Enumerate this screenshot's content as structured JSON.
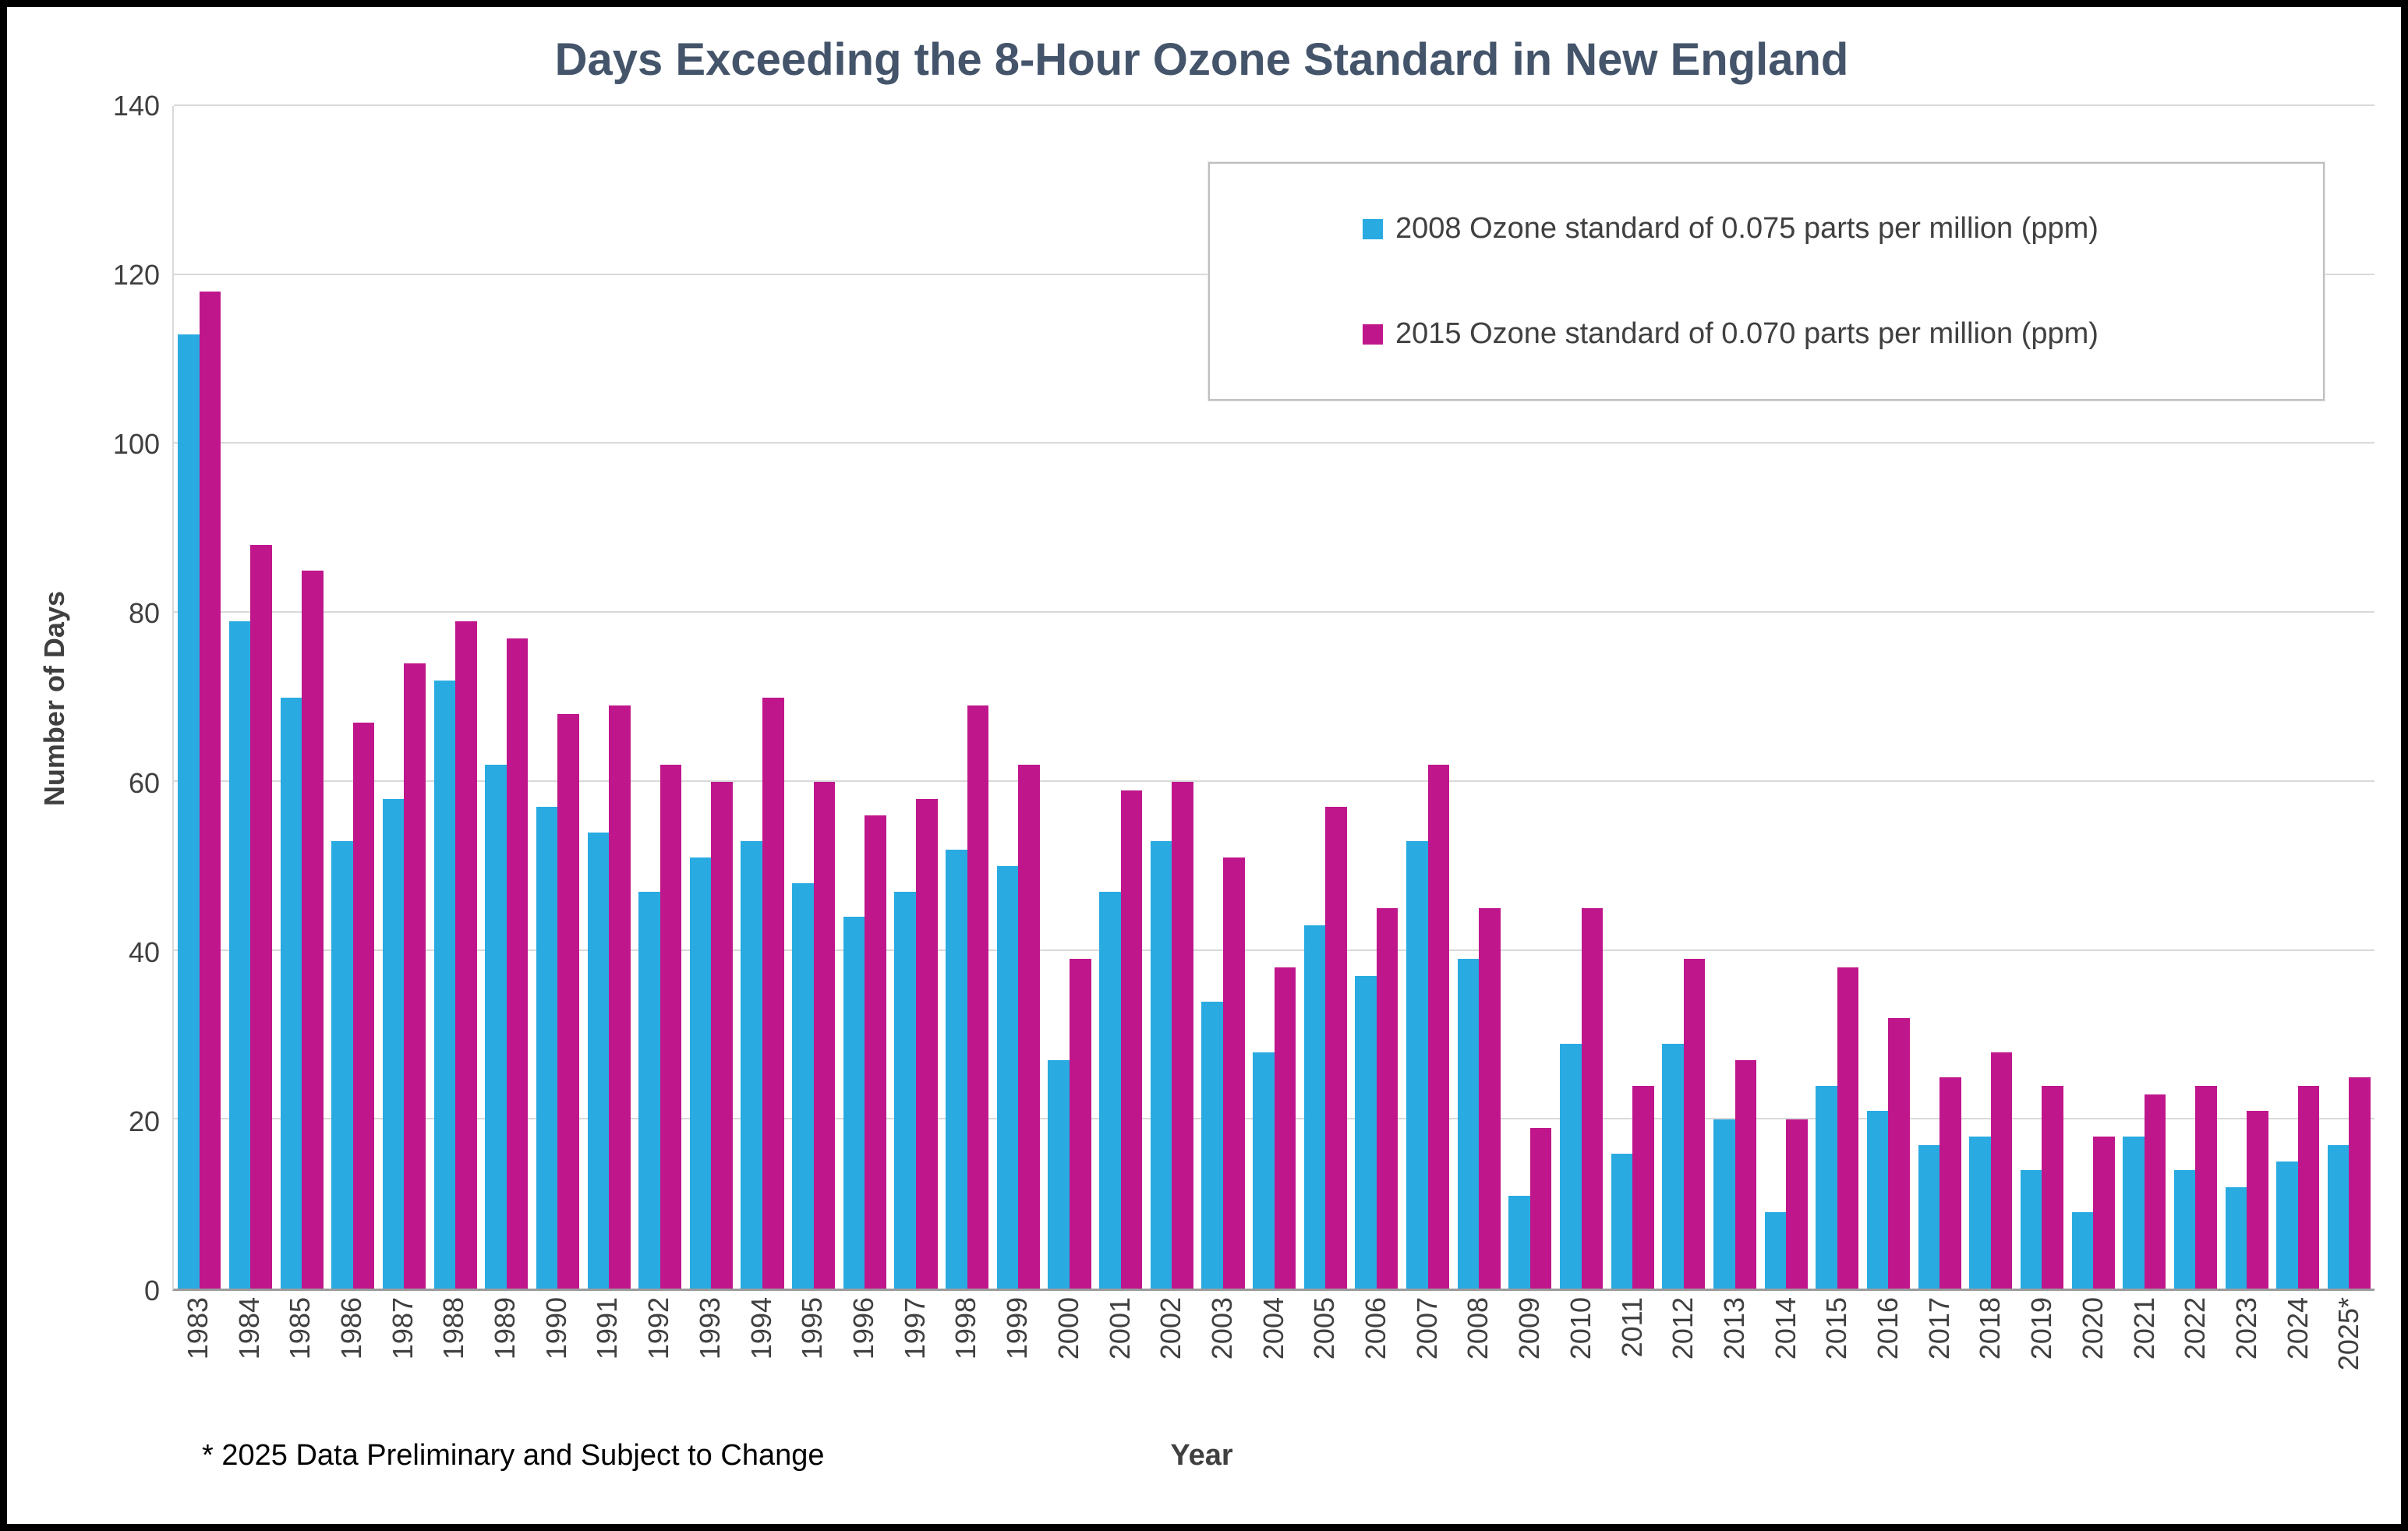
{
  "chart_data": {
    "type": "bar",
    "title": "Days Exceeding the 8-Hour Ozone Standard in New England",
    "xlabel": "Year",
    "ylabel": "Number of Days",
    "footnote": "* 2025 Data Preliminary and Subject to Change",
    "ylim": [
      0,
      140
    ],
    "ytick_step": 20,
    "grid": true,
    "legend_position": "top-right",
    "categories": [
      "1983",
      "1984",
      "1985",
      "1986",
      "1987",
      "1988",
      "1989",
      "1990",
      "1991",
      "1992",
      "1993",
      "1994",
      "1995",
      "1996",
      "1997",
      "1998",
      "1999",
      "2000",
      "2001",
      "2002",
      "2003",
      "2004",
      "2005",
      "2006",
      "2007",
      "2008",
      "2009",
      "2010",
      "2011",
      "2012",
      "2013",
      "2014",
      "2015",
      "2016",
      "2017",
      "2018",
      "2019",
      "2020",
      "2021",
      "2022",
      "2023",
      "2024",
      "2025*"
    ],
    "series": [
      {
        "name": "2008 Ozone standard of 0.075 parts per million (ppm)",
        "color": "#29ABE2",
        "values": [
          113,
          79,
          70,
          53,
          58,
          72,
          62,
          57,
          54,
          47,
          51,
          53,
          48,
          44,
          47,
          52,
          50,
          27,
          47,
          53,
          34,
          28,
          43,
          37,
          53,
          39,
          11,
          29,
          16,
          29,
          20,
          9,
          24,
          21,
          17,
          18,
          14,
          9,
          18,
          14,
          12,
          15,
          17
        ]
      },
      {
        "name": "2015 Ozone standard of 0.070 parts per million (ppm)",
        "color": "#C0168C",
        "values": [
          118,
          88,
          85,
          67,
          74,
          79,
          77,
          68,
          69,
          62,
          60,
          70,
          60,
          56,
          58,
          69,
          62,
          39,
          59,
          60,
          51,
          38,
          57,
          45,
          62,
          45,
          19,
          45,
          24,
          39,
          27,
          20,
          38,
          32,
          25,
          28,
          24,
          18,
          23,
          24,
          21,
          24,
          25
        ]
      }
    ]
  }
}
